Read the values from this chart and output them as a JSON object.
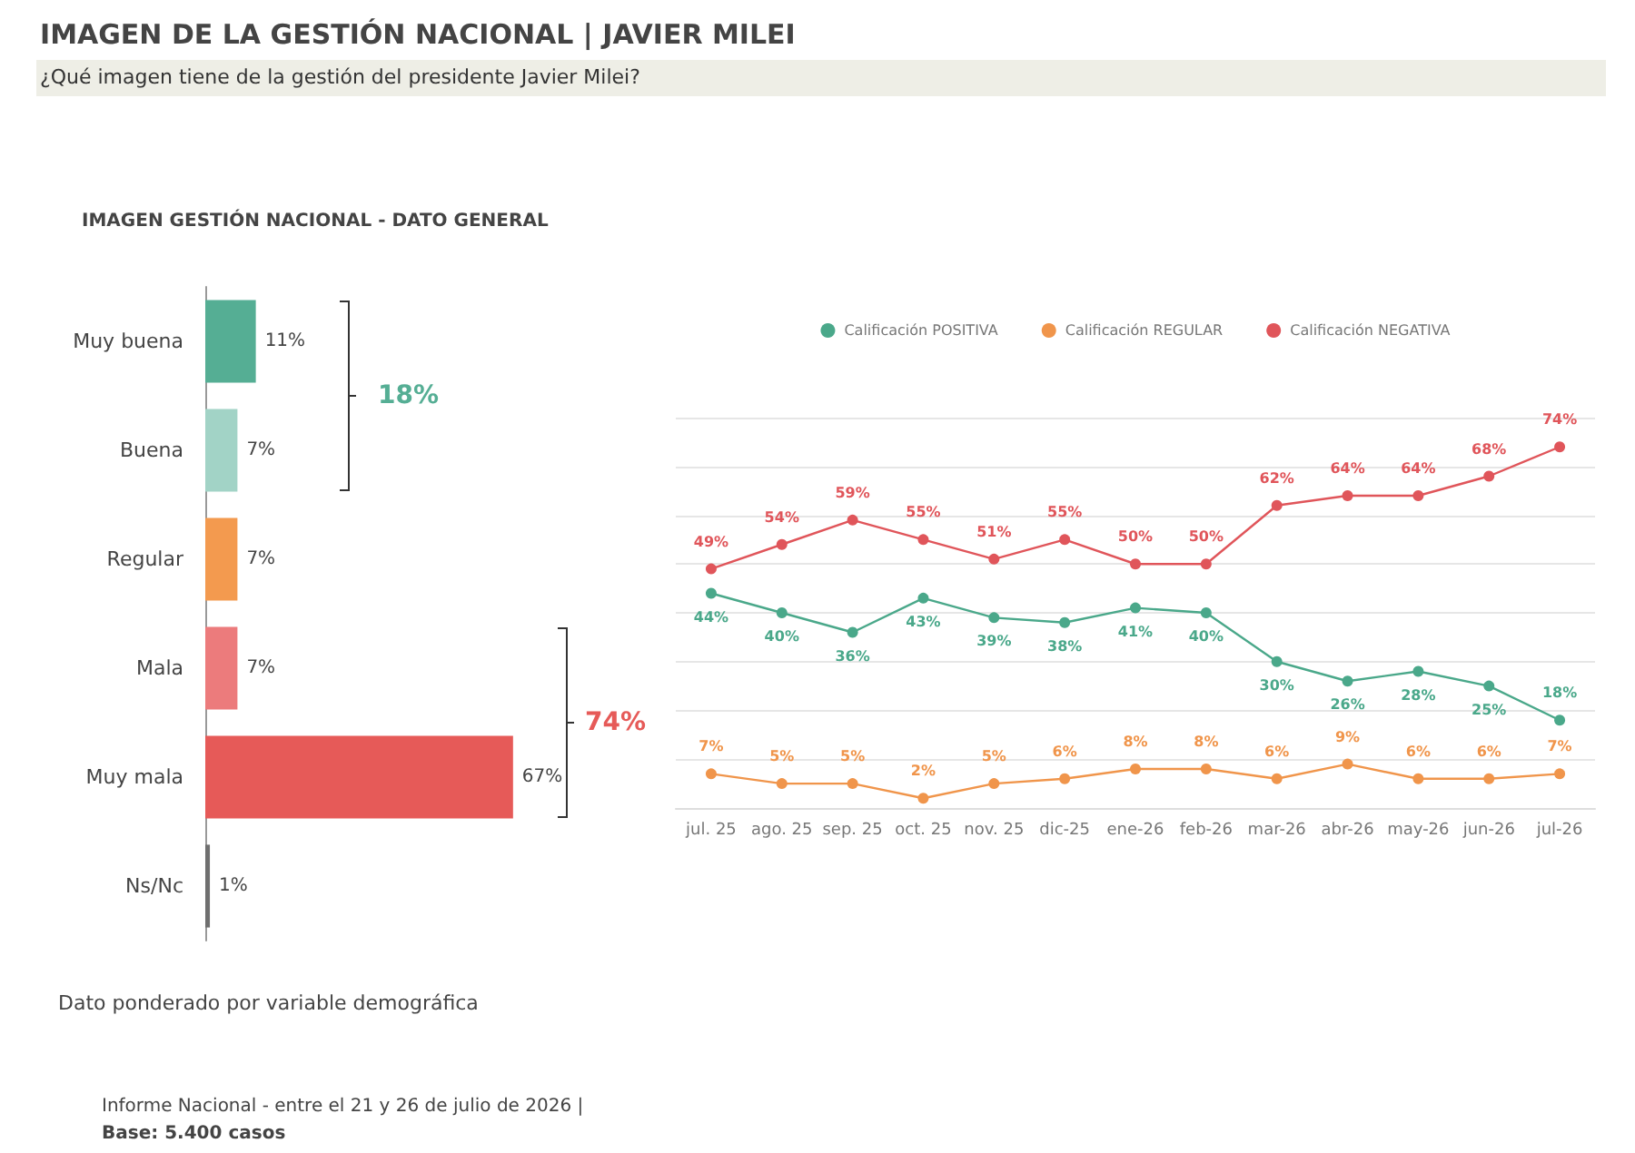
{
  "chart_data": [
    {
      "type": "other",
      "title": "IMAGEN DE LA GESTIÓN NACIONAL | JAVIER MILEI",
      "subtitle": "¿Qué imagen tiene de la gestión del presidente Javier Milei?",
      "annotations": [
        "Dato ponderado por variable demográfica",
        "Informe Nacional - entre el 21 y 26 de julio de 2026 |",
        "Base: 5.400 casos"
      ]
    },
    {
      "type": "bar",
      "orientation": "horizontal",
      "title": "IMAGEN GESTIÓN NACIONAL - DATO GENERAL",
      "categories": [
        "Muy buena",
        "Buena",
        "Regular",
        "Mala",
        "Muy mala",
        "Ns/Nc"
      ],
      "values": [
        11,
        7,
        7,
        7,
        67,
        1
      ],
      "colors": [
        "#55ae94",
        "#a2d3c6",
        "#f39a4f",
        "#ec7b7c",
        "#e65a58",
        "#6f6f6f"
      ],
      "value_labels": [
        "11%",
        "7%",
        "7%",
        "7%",
        "67%",
        "1%"
      ],
      "annotations": [
        "18%",
        "74%"
      ]
    },
    {
      "type": "line",
      "categories": [
        "jul. 25",
        "ago. 25",
        "sep. 25",
        "oct. 25",
        "nov. 25",
        "dic-25",
        "ene-26",
        "feb-26",
        "mar-26",
        "abr-26",
        "may-26",
        "jun-26",
        "jul-26"
      ],
      "series": [
        {
          "name": "Calificación POSITIVA",
          "color": "#4aa88a",
          "values": [
            44,
            40,
            36,
            43,
            39,
            38,
            41,
            40,
            30,
            26,
            28,
            25,
            18
          ],
          "value_labels": [
            "44%",
            "40%",
            "36%",
            "43%",
            "39%",
            "38%",
            "41%",
            "40%",
            "30%",
            "26%",
            "28%",
            "25%",
            "18%"
          ]
        },
        {
          "name": "Calificación REGULAR",
          "color": "#f0954b",
          "values": [
            7,
            5,
            5,
            2,
            5,
            6,
            8,
            8,
            6,
            9,
            6,
            6,
            7
          ],
          "value_labels": [
            "7%",
            "5%",
            "5%",
            "2%",
            "5%",
            "6%",
            "8%",
            "8%",
            "6%",
            "9%",
            "6%",
            "6%",
            "7%"
          ]
        },
        {
          "name": "Calificación NEGATIVA",
          "color": "#e0555a",
          "values": [
            49,
            54,
            59,
            55,
            51,
            55,
            50,
            50,
            62,
            64,
            64,
            68,
            74
          ],
          "value_labels": [
            "49%",
            "54%",
            "59%",
            "55%",
            "51%",
            "55%",
            "50%",
            "50%",
            "62%",
            "64%",
            "64%",
            "68%",
            "74%"
          ]
        }
      ],
      "ylim": [
        0,
        80
      ],
      "yticks": [
        {
          "value": 0,
          "label": null
        },
        {
          "value": 10,
          "label": null
        },
        {
          "value": 20,
          "label": null
        },
        {
          "value": 30,
          "label": null
        },
        {
          "value": 40,
          "label": null
        },
        {
          "value": 50,
          "label": null
        },
        {
          "value": 60,
          "label": null
        },
        {
          "value": 70,
          "label": null
        },
        {
          "value": 80,
          "label": null
        }
      ],
      "tick_labels": "x",
      "grid": "y",
      "legend": "top",
      "marker": "circle",
      "line_style": "solid"
    }
  ]
}
